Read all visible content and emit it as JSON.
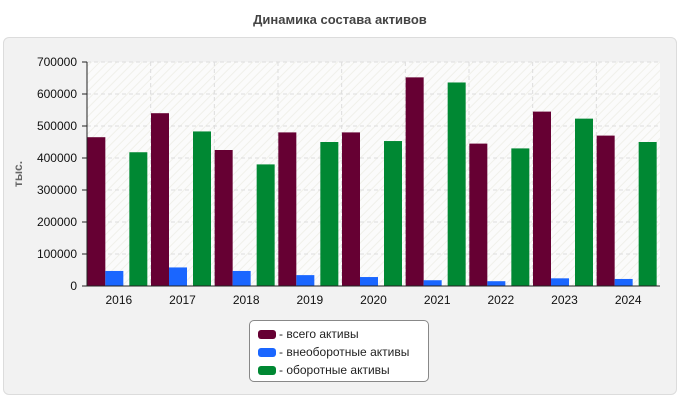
{
  "chart_data": {
    "type": "bar",
    "title": "Динамика состава активов",
    "xlabel": "",
    "ylabel": "тыс.",
    "ylim": [
      0,
      700000
    ],
    "yticks": [
      0,
      100000,
      200000,
      300000,
      400000,
      500000,
      600000,
      700000
    ],
    "grid": true,
    "legend_position": "bottom-center",
    "categories": [
      "2016",
      "2017",
      "2018",
      "2019",
      "2020",
      "2021",
      "2022",
      "2023",
      "2024"
    ],
    "series": [
      {
        "name": "всего активы",
        "legend_label": "- всего активы",
        "color": "#660033",
        "values": [
          465000,
          540000,
          425000,
          480000,
          480000,
          652000,
          445000,
          545000,
          470000
        ]
      },
      {
        "name": "внеоборотные активы",
        "legend_label": "- внеоборотные активы",
        "color": "#1a66ff",
        "values": [
          47000,
          58000,
          47000,
          34000,
          28000,
          18000,
          15000,
          24000,
          22000
        ]
      },
      {
        "name": "оборотные активы",
        "legend_label": "- оборотные активы",
        "color": "#008833",
        "values": [
          418000,
          483000,
          380000,
          450000,
          453000,
          636000,
          430000,
          523000,
          450000
        ]
      }
    ]
  }
}
